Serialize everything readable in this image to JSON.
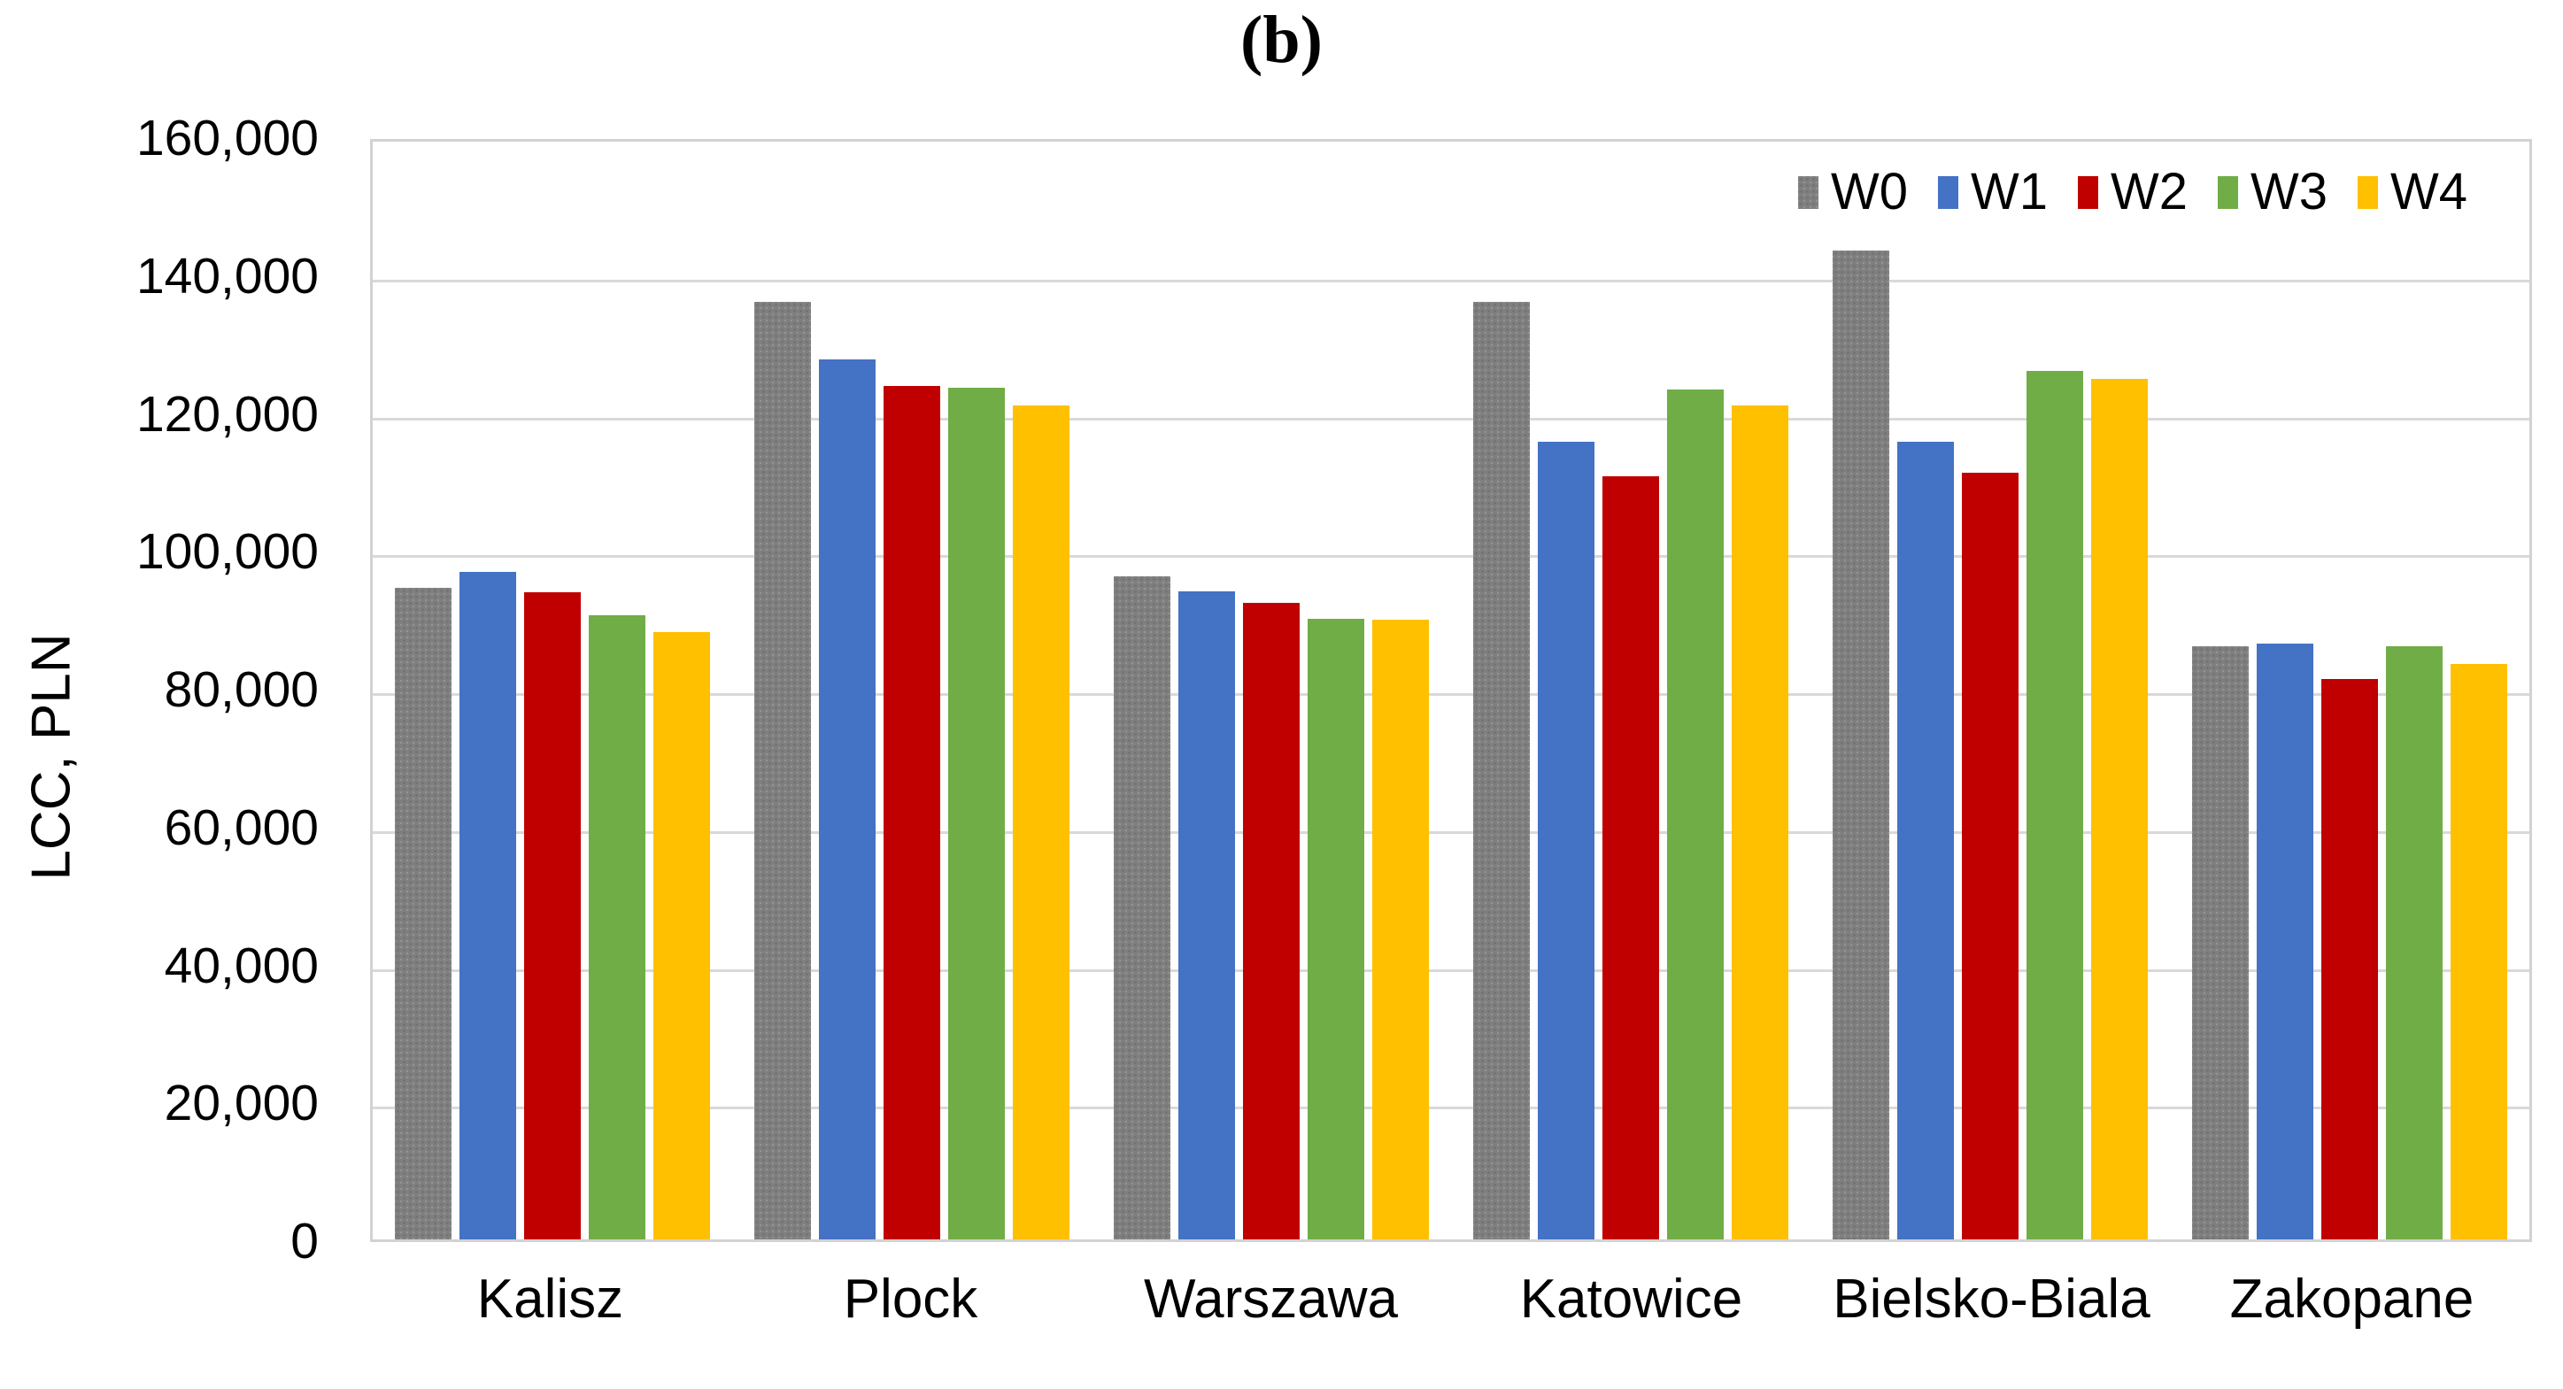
{
  "title": "(b)",
  "y_axis": {
    "label": "LCC, PLN",
    "ticks_top_to_bottom": [
      "160,000",
      "140,000",
      "120,000",
      "100,000",
      "80,000",
      "60,000",
      "40,000",
      "20,000",
      "0"
    ]
  },
  "chart_data": {
    "type": "bar",
    "title": "(b)",
    "xlabel": "",
    "ylabel": "LCC, PLN",
    "ylim": [
      0,
      160000
    ],
    "ytick_step": 20000,
    "grid": true,
    "legend_position": "top-right",
    "categories": [
      "Kalisz",
      "Plock",
      "Warszawa",
      "Katowice",
      "Bielsko-Biala",
      "Zakopane"
    ],
    "series": [
      {
        "name": "W0",
        "color": "#7f7f7f",
        "fill_pattern": "dots",
        "values": [
          95000,
          136600,
          96700,
          136700,
          144100,
          86400
        ]
      },
      {
        "name": "W1",
        "color": "#4472c4",
        "fill_pattern": "solid",
        "values": [
          97300,
          128200,
          94500,
          116300,
          116200,
          86900
        ]
      },
      {
        "name": "W2",
        "color": "#c00000",
        "fill_pattern": "solid",
        "values": [
          94300,
          124400,
          92800,
          111200,
          111700,
          81700
        ]
      },
      {
        "name": "W3",
        "color": "#70ad47",
        "fill_pattern": "solid",
        "values": [
          91000,
          124100,
          90400,
          123900,
          126600,
          86500
        ]
      },
      {
        "name": "W4",
        "color": "#ffc000",
        "fill_pattern": "solid",
        "values": [
          88500,
          121600,
          90300,
          121500,
          125400,
          83900
        ]
      }
    ]
  }
}
